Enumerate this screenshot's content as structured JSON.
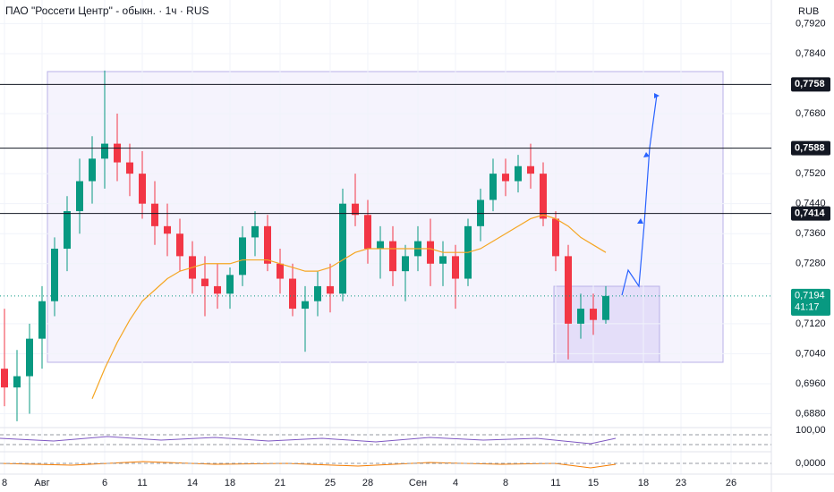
{
  "chart_data": {
    "type": "candlestick",
    "title": "ПАО \"Россети Центр\" - обыкн. · 1ч · RUS",
    "currency": "RUB",
    "categories": [
      "8",
      null,
      null,
      "Авг",
      null,
      null,
      null,
      null,
      "6",
      null,
      null,
      "11",
      null,
      null,
      null,
      "14",
      null,
      null,
      "18",
      null,
      null,
      null,
      "21",
      null,
      null,
      null,
      "25",
      null,
      null,
      "28",
      null,
      null,
      null,
      "Сен",
      null,
      null,
      "4",
      null,
      null,
      null,
      "8",
      null,
      null,
      null,
      "11",
      null,
      null,
      "15",
      null,
      null,
      null,
      "18",
      null,
      null,
      "23",
      null,
      null,
      null,
      "26",
      null
    ],
    "open": [
      0.7,
      0.695,
      0.698,
      0.708,
      0.718,
      0.732,
      0.742,
      0.75,
      0.756,
      0.76,
      0.755,
      0.752,
      0.744,
      0.738,
      0.736,
      0.73,
      0.724,
      0.722,
      0.72,
      0.725,
      0.735,
      0.738,
      0.728,
      0.724,
      0.716,
      0.718,
      0.722,
      0.72,
      0.744,
      0.741,
      0.732,
      0.734,
      0.726,
      0.73,
      0.734,
      0.728,
      0.73,
      0.724,
      0.738,
      0.745,
      0.752,
      0.75,
      0.754,
      0.752,
      0.74,
      0.73,
      0.712,
      0.716,
      0.713,
      null,
      null,
      null,
      null,
      null,
      null,
      null,
      null,
      null,
      null,
      null
    ],
    "high": [
      0.716,
      0.705,
      0.712,
      0.722,
      0.735,
      0.746,
      0.756,
      0.762,
      0.7795,
      0.768,
      0.76,
      0.758,
      0.75,
      0.744,
      0.74,
      0.734,
      0.73,
      0.728,
      0.727,
      0.738,
      0.742,
      0.741,
      0.732,
      0.728,
      0.722,
      0.726,
      0.728,
      0.748,
      0.752,
      0.745,
      0.738,
      0.738,
      0.733,
      0.738,
      0.74,
      0.734,
      0.733,
      0.74,
      0.748,
      0.756,
      0.756,
      0.757,
      0.76,
      0.755,
      0.742,
      0.733,
      0.72,
      0.72,
      0.722,
      null,
      null,
      null,
      null,
      null,
      null,
      null,
      null,
      null,
      null,
      null
    ],
    "low": [
      0.69,
      0.686,
      0.688,
      0.7,
      0.714,
      0.726,
      0.736,
      0.744,
      0.748,
      0.75,
      0.746,
      0.74,
      0.733,
      0.73,
      0.726,
      0.72,
      0.714,
      0.716,
      0.716,
      0.722,
      0.73,
      0.726,
      0.72,
      0.714,
      0.7045,
      0.714,
      0.715,
      0.718,
      0.738,
      0.728,
      0.724,
      0.722,
      0.718,
      0.726,
      0.722,
      0.722,
      0.716,
      0.722,
      0.734,
      0.742,
      0.746,
      0.747,
      0.748,
      0.738,
      0.726,
      0.7025,
      0.708,
      0.709,
      0.712,
      null,
      null,
      null,
      null,
      null,
      null,
      null,
      null,
      null,
      null,
      null
    ],
    "close": [
      0.695,
      0.698,
      0.708,
      0.718,
      0.732,
      0.742,
      0.75,
      0.756,
      0.76,
      0.755,
      0.752,
      0.744,
      0.738,
      0.736,
      0.73,
      0.724,
      0.722,
      0.72,
      0.725,
      0.735,
      0.738,
      0.728,
      0.724,
      0.716,
      0.718,
      0.722,
      0.72,
      0.744,
      0.741,
      0.732,
      0.734,
      0.726,
      0.73,
      0.734,
      0.728,
      0.73,
      0.724,
      0.738,
      0.745,
      0.752,
      0.75,
      0.754,
      0.752,
      0.74,
      0.73,
      0.712,
      0.716,
      0.713,
      0.7194,
      null,
      null,
      null,
      null,
      null,
      null,
      null,
      null,
      null,
      null,
      null
    ],
    "moving_average": {
      "color": "#f5a623",
      "values": [
        null,
        null,
        null,
        null,
        null,
        null,
        null,
        0.692,
        0.7,
        0.707,
        0.713,
        0.718,
        0.721,
        0.724,
        0.726,
        0.727,
        0.728,
        0.728,
        0.728,
        0.729,
        0.729,
        0.729,
        0.728,
        0.727,
        0.726,
        0.726,
        0.727,
        0.729,
        0.731,
        0.732,
        0.732,
        0.732,
        0.732,
        0.732,
        0.732,
        0.731,
        0.731,
        0.731,
        0.732,
        0.734,
        0.736,
        0.738,
        0.74,
        0.741,
        0.74,
        0.738,
        0.735,
        0.733,
        0.731,
        null,
        null,
        null,
        null,
        null,
        null,
        null,
        null,
        null,
        null,
        null
      ]
    },
    "up_color": "#089981",
    "down_color": "#f23645",
    "ylim": [
      0.6843,
      0.7983
    ],
    "yticks": [
      {
        "value": 0.792,
        "label": "0,7920"
      },
      {
        "value": 0.784,
        "label": "0,7840"
      },
      {
        "value": 0.768,
        "label": "0,7680"
      },
      {
        "value": 0.752,
        "label": "0,7520"
      },
      {
        "value": 0.744,
        "label": "0,7440"
      },
      {
        "value": 0.736,
        "label": "0,7360"
      },
      {
        "value": 0.728,
        "label": "0,7280"
      },
      {
        "value": 0.712,
        "label": "0,7120"
      },
      {
        "value": 0.704,
        "label": "0,7040"
      },
      {
        "value": 0.696,
        "label": "0,6960"
      },
      {
        "value": 0.688,
        "label": "0,6880"
      }
    ],
    "levels": [
      {
        "value": 0.7758,
        "label": "0,7758"
      },
      {
        "value": 0.7588,
        "label": "0,7588"
      },
      {
        "value": 0.7414,
        "label": "0,7414"
      }
    ],
    "last_price": {
      "value": 0.7194,
      "label": "0,7194"
    },
    "countdown": "41:17",
    "indicator_labels": [
      "100,00",
      "0,0000"
    ],
    "grid": true
  }
}
